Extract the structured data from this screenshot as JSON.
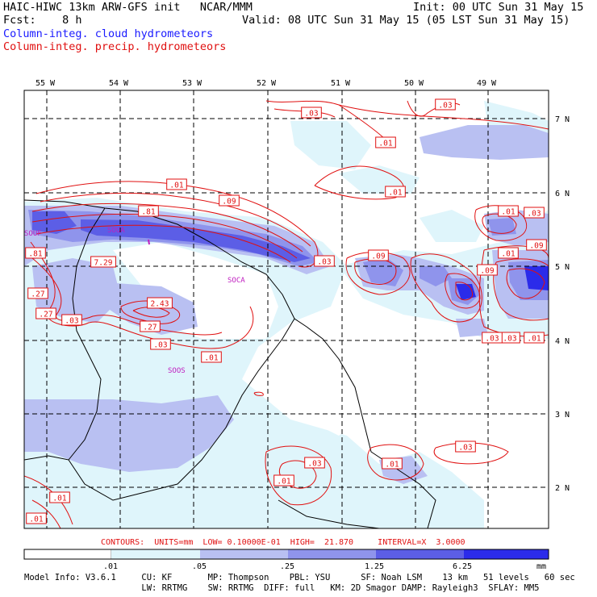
{
  "header": {
    "title": "HAIC-HIWC 13km ARW-GFS init   NCAR/MMM",
    "fcst": "Fcst:    8 h",
    "init": "Init: 00 UTC Sun 31 May 15",
    "valid": "Valid: 08 UTC Sun 31 May 15 (05 LST Sun 31 May 15)",
    "legend_cloud": "Column-integ. cloud hydrometeors",
    "legend_precip": "Column-integ. precip. hydrometeors",
    "legend_cloud_color": "#1a1aff",
    "legend_precip_color": "#e01010"
  },
  "map": {
    "lon_labels": [
      "55 W",
      "54 W",
      "53 W",
      "52 W",
      "51 W",
      "50 W",
      "49 W"
    ],
    "lat_labels": [
      "7 N",
      "6 N",
      "5 N",
      "4 N",
      "3 N",
      "2 N"
    ],
    "contour_labels": [
      ".03",
      ".03",
      ".01",
      ".01",
      ".09",
      ".81",
      ".01",
      ".01",
      ".03",
      ".09",
      ".81",
      "7.29",
      ".03",
      ".09",
      ".09",
      ".01",
      ".27",
      ".03",
      ".27",
      "2.43",
      ".27",
      ".03",
      ".01",
      ".03",
      ".01",
      ".01",
      ".03",
      ".01",
      ".01",
      ".03",
      ".01",
      ".03"
    ],
    "place_labels": [
      "SOUF",
      "SOUA",
      "SOCA",
      "SOOS"
    ]
  },
  "contours_info": "CONTOURS:  UNITS=mm  LOW= 0.10000E-01  HIGH=  21.870     INTERVAL=X  3.0000",
  "colorbar": {
    "ticks": [
      ".01",
      ".05",
      ".25",
      "1.25",
      "6.25"
    ],
    "unit": "mm",
    "colors": [
      "#ffffff",
      "#dff5fb",
      "#b9c0f2",
      "#8f94ec",
      "#5c5ee6",
      "#2b2bea"
    ]
  },
  "model_info": {
    "line1": "Model Info: V3.6.1     CU: KF       MP: Thompson    PBL: YSU      SF: Noah LSM    13 km   51 levels   60 sec",
    "line2": "                       LW: RRTMG    SW: RRTMG  DIFF: full   KM: 2D Smagor DAMP: Rayleigh3  SFLAY: MM5"
  }
}
